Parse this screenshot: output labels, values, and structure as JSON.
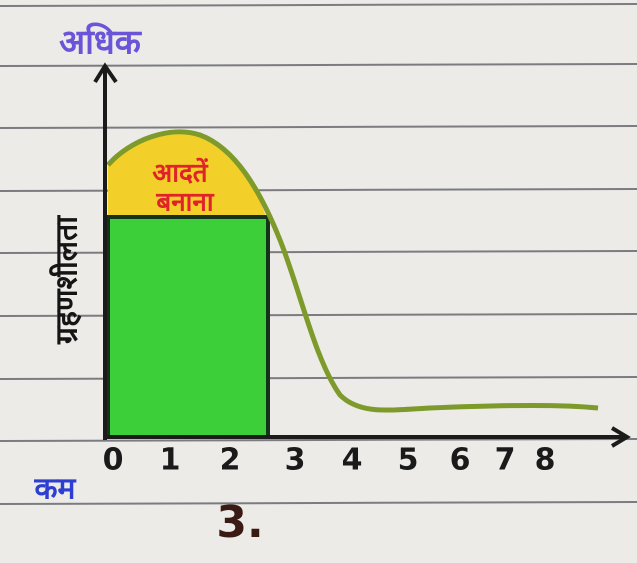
{
  "top_label": "अधिक",
  "bottom_label": "कम",
  "y_axis_label": "ग्रहणशीलता",
  "annotation": {
    "line1": "आदतें",
    "line2": "बनाना"
  },
  "x_tick_labels": [
    "0",
    "1",
    "2",
    "3",
    "4",
    "5",
    "6",
    "7",
    "8"
  ],
  "figure_number": "3."
}
